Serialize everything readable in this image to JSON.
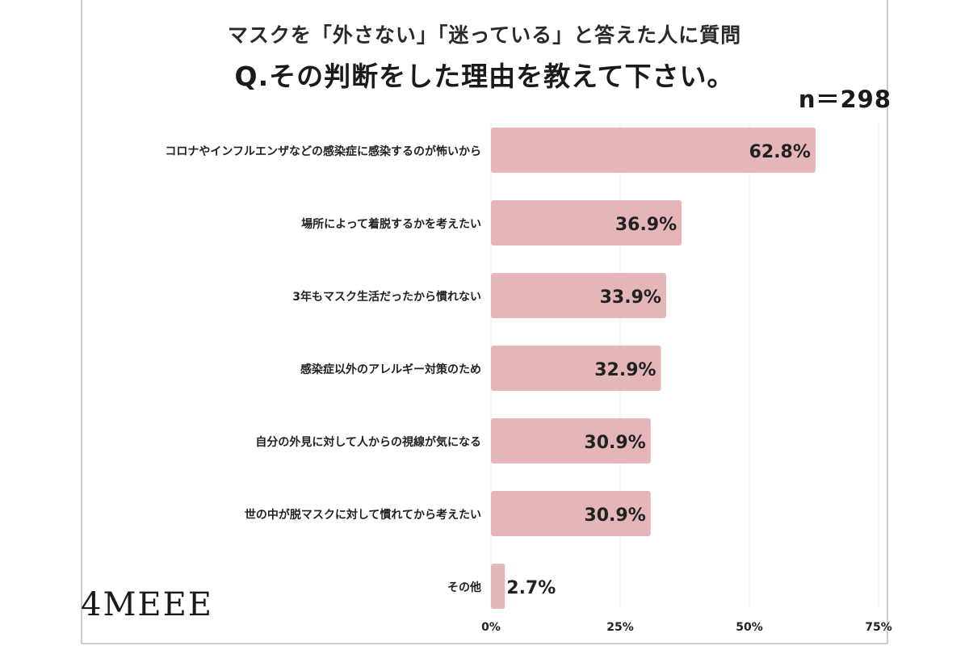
{
  "title": {
    "line1": "マスクを「外さない」「迷っている」と答えた人に質問",
    "line2": "Q.その判断をした理由を教えて下さい。"
  },
  "sample_size": "n＝298",
  "brand": "4MEEE",
  "colors": {
    "bar": "#e5b6b7",
    "gridline": "#eeeeee",
    "text": "#222222"
  },
  "chart_data": {
    "type": "bar",
    "orientation": "horizontal",
    "title": "マスクを「外さない」「迷っている」と答えた人に質問 Q.その判断をした理由を教えて下さい。",
    "categories": [
      "コロナやインフルエンザなどの感染症に感染するのが怖いから",
      "場所によって着脱するかを考えたい",
      "3年もマスク生活だったから慣れない",
      "感染症以外のアレルギー対策のため",
      "自分の外見に対して人からの視線が気になる",
      "世の中が脱マスクに対して慣れてから考えたい",
      "その他"
    ],
    "values": [
      62.8,
      36.9,
      33.9,
      32.9,
      30.9,
      30.9,
      2.7
    ],
    "value_labels": [
      "62.8%",
      "36.9%",
      "33.9%",
      "32.9%",
      "30.9%",
      "30.9%",
      "2.7%"
    ],
    "xlim": [
      0,
      75
    ],
    "x_ticks": [
      0,
      25,
      50,
      75
    ],
    "x_tick_labels": [
      "0%",
      "25%",
      "50%",
      "75%"
    ],
    "xlabel": "",
    "ylabel": "",
    "grid": true,
    "legend": "none"
  }
}
